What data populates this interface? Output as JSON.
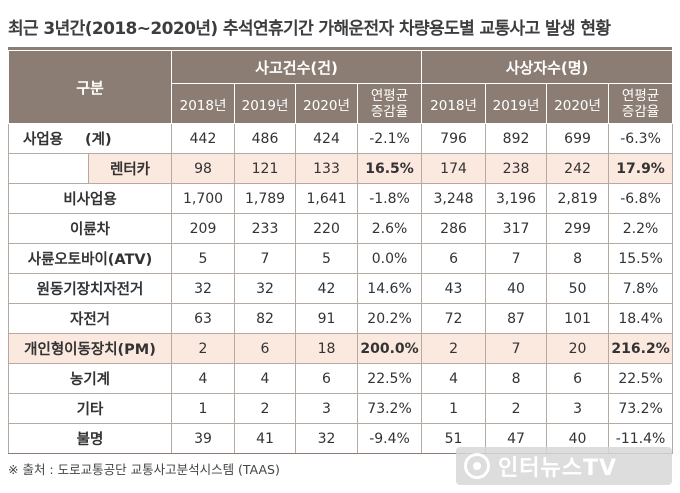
{
  "title": "최근 3년간(2018~2020년) 추석연휴기간 가해운전자 차량용도별 교통사고 발생 현황",
  "header": {
    "category": "구분",
    "group_accidents": "사고건수(건)",
    "group_casualties": "사상자수(명)",
    "years": [
      "2018년",
      "2019년",
      "2020년"
    ],
    "rate_line1": "연평균",
    "rate_line2": "증감율"
  },
  "rows": [
    {
      "label": "사업용",
      "label_suffix": "(계)",
      "acc": [
        "442",
        "486",
        "424",
        "-2.1%"
      ],
      "cas": [
        "796",
        "892",
        "699",
        "-6.3%"
      ]
    },
    {
      "label": "렌터카",
      "sub": true,
      "acc": [
        "98",
        "121",
        "133",
        "16.5%"
      ],
      "cas": [
        "174",
        "238",
        "242",
        "17.9%"
      ]
    },
    {
      "label": "비사업용",
      "acc": [
        "1,700",
        "1,789",
        "1,641",
        "-1.8%"
      ],
      "cas": [
        "3,248",
        "3,196",
        "2,819",
        "-6.8%"
      ]
    },
    {
      "label": "이륜차",
      "acc": [
        "209",
        "233",
        "220",
        "2.6%"
      ],
      "cas": [
        "286",
        "317",
        "299",
        "2.2%"
      ]
    },
    {
      "label": "사륜오토바이(ATV)",
      "acc": [
        "5",
        "7",
        "5",
        "0.0%"
      ],
      "cas": [
        "6",
        "7",
        "8",
        "15.5%"
      ]
    },
    {
      "label": "원동기장치자전거",
      "acc": [
        "32",
        "32",
        "42",
        "14.6%"
      ],
      "cas": [
        "43",
        "40",
        "50",
        "7.8%"
      ]
    },
    {
      "label": "자전거",
      "acc": [
        "63",
        "82",
        "91",
        "20.2%"
      ],
      "cas": [
        "72",
        "87",
        "101",
        "18.4%"
      ]
    },
    {
      "label": "개인형이동장치(PM)",
      "acc": [
        "2",
        "6",
        "18",
        "200.0%"
      ],
      "cas": [
        "2",
        "7",
        "20",
        "216.2%"
      ]
    },
    {
      "label": "농기계",
      "acc": [
        "4",
        "4",
        "6",
        "22.5%"
      ],
      "cas": [
        "4",
        "8",
        "6",
        "22.5%"
      ]
    },
    {
      "label": "기타",
      "acc": [
        "1",
        "2",
        "3",
        "73.2%"
      ],
      "cas": [
        "1",
        "2",
        "3",
        "73.2%"
      ]
    },
    {
      "label": "불명",
      "acc": [
        "39",
        "41",
        "32",
        "-9.4%"
      ],
      "cas": [
        "51",
        "47",
        "40",
        "-11.4%"
      ]
    }
  ],
  "source": "※ 출처 : 도로교통공단 교통사고분석시스템 (TAAS)",
  "watermark": "인터뉴스TV",
  "colors": {
    "header_bg": "#8b7d73",
    "highlight_bg": "#fbe8df"
  }
}
